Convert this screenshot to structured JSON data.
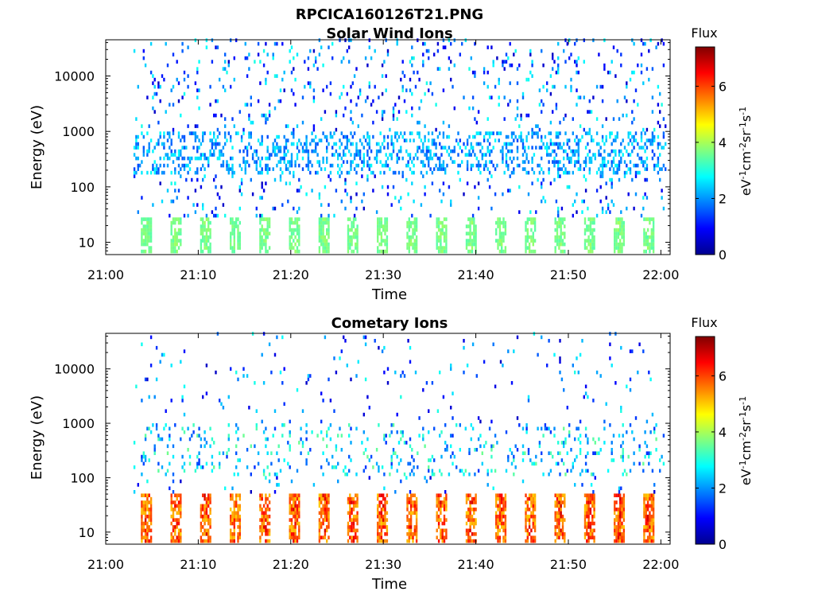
{
  "figure": {
    "filename": "RPCICA160126T21.PNG"
  },
  "colormap": [
    "#00008f",
    "#0000ff",
    "#0080ff",
    "#00ffff",
    "#80ff80",
    "#ffff00",
    "#ff8000",
    "#ff0000",
    "#800000"
  ],
  "chart_data": [
    {
      "type": "heatmap",
      "title": "Solar Wind Ions",
      "xlabel": "Time",
      "ylabel": "Energy (eV)",
      "y_scale": "log",
      "x_ticks": [
        "21:00",
        "21:10",
        "21:20",
        "21:30",
        "21:40",
        "21:50",
        "22:00"
      ],
      "y_ticks": [
        "10",
        "100",
        "1000",
        "10000"
      ],
      "y_tick_values": [
        10,
        100,
        1000,
        10000
      ],
      "x_range": [
        "21:00",
        "22:01"
      ],
      "y_range_eV": [
        6,
        45000
      ],
      "colorbar": {
        "title": "Flux",
        "unit": "eV-1cm-2sr-1s-1",
        "range": [
          0,
          7.4
        ],
        "ticks": [
          "0",
          "2",
          "4",
          "6"
        ],
        "tick_values": [
          0,
          2,
          4,
          6
        ]
      },
      "low_energy_band_eV": [
        6,
        28
      ],
      "low_energy_flux": [
        3.4,
        4.0
      ],
      "pulse_times_min": [
        4.3,
        7.5,
        10.7,
        13.9,
        17.1,
        20.3,
        23.5,
        26.6,
        29.8,
        33.0,
        36.2,
        39.4,
        42.6,
        45.8,
        49.0,
        52.2,
        55.4,
        58.6
      ],
      "mid_band_eV": [
        150,
        900
      ],
      "mid_band_flux": [
        1.4,
        2.8
      ],
      "scatter_density_pct": 14,
      "data_start_min": 3.0
    },
    {
      "type": "heatmap",
      "title": "Cometary Ions",
      "xlabel": "Time",
      "ylabel": "Energy (eV)",
      "y_scale": "log",
      "x_ticks": [
        "21:00",
        "21:10",
        "21:20",
        "21:30",
        "21:40",
        "21:50",
        "22:00"
      ],
      "y_ticks": [
        "10",
        "100",
        "1000",
        "10000"
      ],
      "y_tick_values": [
        10,
        100,
        1000,
        10000
      ],
      "x_range": [
        "21:00",
        "22:01"
      ],
      "y_range_eV": [
        6,
        45000
      ],
      "colorbar": {
        "title": "Flux",
        "unit": "eV-1cm-2sr-1s-1",
        "range": [
          0,
          7.4
        ],
        "ticks": [
          "0",
          "2",
          "4",
          "6"
        ],
        "tick_values": [
          0,
          2,
          4,
          6
        ]
      },
      "low_energy_band_eV": [
        6,
        45
      ],
      "low_energy_flux": [
        5.0,
        7.0
      ],
      "pulse_times_min": [
        4.3,
        7.5,
        10.7,
        13.9,
        17.1,
        20.3,
        23.5,
        26.6,
        29.8,
        33.0,
        36.2,
        39.4,
        42.6,
        45.8,
        49.0,
        52.2,
        55.4,
        58.6
      ],
      "mid_band_eV": [
        100,
        1000
      ],
      "mid_band_flux": [
        1.2,
        3.6
      ],
      "scatter_density_pct": 5,
      "data_start_min": 3.0
    }
  ]
}
